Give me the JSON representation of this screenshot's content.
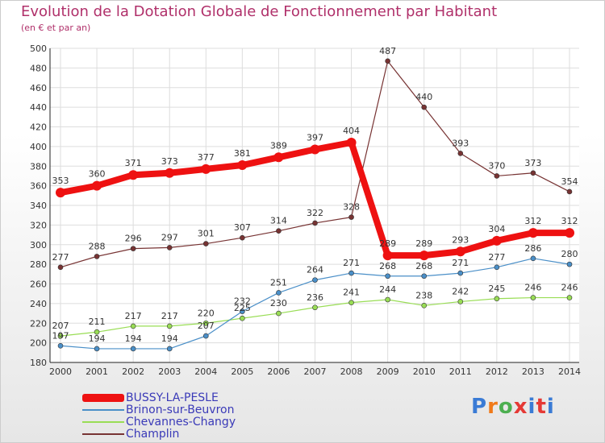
{
  "title": "Evolution de la Dotation Globale de Fonctionnement par Habitant",
  "subtitle": "(en € et par an)",
  "logo": {
    "text": "Proxiti",
    "colors": [
      "#3a7bd5",
      "#f07a1a",
      "#4caf50",
      "#e53935",
      "#3a7bd5",
      "#e53935",
      "#3a7bd5"
    ]
  },
  "chart_data": {
    "type": "line",
    "title": "Evolution de la Dotation Globale de Fonctionnement par Habitant",
    "subtitle": "(en € et par an)",
    "xlabel": "",
    "ylabel": "",
    "ylim": [
      180,
      500
    ],
    "yticks": [
      180,
      200,
      220,
      240,
      260,
      280,
      300,
      320,
      340,
      360,
      380,
      400,
      420,
      440,
      460,
      480,
      500
    ],
    "grid": true,
    "legend_position": "bottom-left",
    "categories": [
      "2000",
      "2001",
      "2002",
      "2003",
      "2004",
      "2005",
      "2006",
      "2007",
      "2008",
      "2009",
      "2010",
      "2011",
      "2012",
      "2013",
      "2014"
    ],
    "series": [
      {
        "name": "BUSSY-LA-PESLE",
        "color": "#ee1111",
        "values": [
          353,
          360,
          371,
          373,
          377,
          381,
          389,
          397,
          404,
          289,
          289,
          293,
          304,
          312,
          312
        ]
      },
      {
        "name": "Brinon-sur-Beuvron",
        "color": "#4a8fc8",
        "values": [
          197,
          194,
          194,
          194,
          207,
          232,
          251,
          264,
          271,
          268,
          268,
          271,
          277,
          286,
          280
        ]
      },
      {
        "name": "Chevannes-Changy",
        "color": "#99dd55",
        "values": [
          207,
          211,
          217,
          217,
          220,
          225,
          230,
          236,
          241,
          244,
          238,
          242,
          245,
          246,
          246
        ]
      },
      {
        "name": "Champlin",
        "color": "#773333",
        "values": [
          277,
          288,
          296,
          297,
          301,
          307,
          314,
          322,
          328,
          487,
          440,
          393,
          370,
          373,
          354
        ]
      }
    ]
  }
}
